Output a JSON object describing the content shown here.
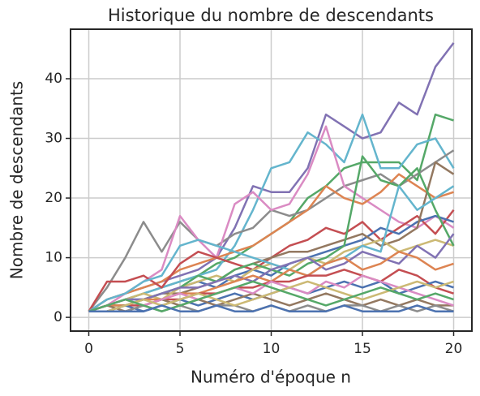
{
  "chart_data": {
    "type": "line",
    "title": "Historique du nombre de descendants",
    "xlabel": "Numéro d'époque n",
    "ylabel": "Nombre de descendants",
    "x": [
      0,
      1,
      2,
      3,
      4,
      5,
      6,
      7,
      8,
      9,
      10,
      11,
      12,
      13,
      14,
      15,
      16,
      17,
      18,
      19,
      20
    ],
    "xlim": [
      -1,
      21
    ],
    "ylim": [
      -2.3,
      48.3
    ],
    "xticks": [
      0,
      5,
      10,
      15,
      20
    ],
    "yticks": [
      0,
      10,
      20,
      30,
      40
    ],
    "grid": true,
    "series": [
      {
        "color": "#8172b3",
        "values": [
          1,
          3,
          4,
          5,
          6,
          7,
          8,
          10,
          15,
          22,
          21,
          21,
          25,
          34,
          32,
          30,
          31,
          36,
          34,
          42,
          46
        ]
      },
      {
        "color": "#55a868",
        "values": [
          1,
          2,
          3,
          4,
          5,
          6,
          7,
          9,
          10,
          12,
          14,
          16,
          20,
          22,
          25,
          26,
          26,
          26,
          23,
          34,
          33
        ]
      },
      {
        "color": "#64b5cd",
        "values": [
          1,
          2,
          3,
          4,
          5,
          6,
          7,
          8,
          12,
          18,
          25,
          26,
          31,
          29,
          26,
          34,
          25,
          25,
          29,
          30,
          25
        ]
      },
      {
        "color": "#8c8c8c",
        "values": [
          1,
          5,
          10,
          16,
          11,
          16,
          13,
          12,
          14,
          15,
          18,
          17,
          18,
          20,
          22,
          23,
          24,
          22,
          24,
          26,
          28
        ]
      },
      {
        "color": "#da8bc3",
        "values": [
          1,
          2,
          4,
          6,
          8,
          17,
          13,
          10,
          19,
          21,
          18,
          19,
          24,
          32,
          22,
          20,
          18,
          16,
          15,
          17,
          15
        ]
      },
      {
        "color": "#dd8452",
        "values": [
          1,
          3,
          4,
          5,
          6,
          8,
          9,
          10,
          11,
          12,
          14,
          16,
          18,
          22,
          20,
          19,
          21,
          24,
          22,
          20,
          21
        ]
      },
      {
        "color": "#c44e52",
        "values": [
          1,
          6,
          6,
          7,
          5,
          9,
          11,
          10,
          9,
          8,
          10,
          12,
          13,
          15,
          14,
          16,
          13,
          15,
          17,
          14,
          18
        ]
      },
      {
        "color": "#4c72b0",
        "values": [
          1,
          2,
          3,
          3,
          4,
          5,
          6,
          5,
          7,
          8,
          7,
          9,
          10,
          11,
          12,
          13,
          15,
          14,
          16,
          17,
          16
        ]
      },
      {
        "color": "#937860",
        "values": [
          1,
          2,
          2,
          3,
          4,
          4,
          5,
          6,
          8,
          9,
          10,
          11,
          11,
          12,
          13,
          14,
          12,
          13,
          15,
          26,
          24
        ]
      },
      {
        "color": "#ccb974",
        "values": [
          1,
          2,
          3,
          4,
          3,
          5,
          6,
          7,
          6,
          8,
          9,
          8,
          10,
          9,
          11,
          12,
          13,
          11,
          12,
          13,
          12
        ]
      },
      {
        "color": "#55a868",
        "values": [
          1,
          2,
          2,
          3,
          4,
          5,
          7,
          6,
          8,
          9,
          8,
          7,
          9,
          10,
          12,
          27,
          23,
          22,
          25,
          18,
          12
        ]
      },
      {
        "color": "#64b5cd",
        "values": [
          1,
          3,
          4,
          6,
          7,
          12,
          13,
          12,
          11,
          10,
          9,
          8,
          7,
          9,
          10,
          12,
          11,
          22,
          18,
          20,
          22
        ]
      },
      {
        "color": "#8172b3",
        "values": [
          1,
          2,
          3,
          3,
          4,
          5,
          5,
          6,
          7,
          6,
          8,
          9,
          10,
          8,
          9,
          11,
          10,
          9,
          12,
          10,
          14
        ]
      },
      {
        "color": "#dd8452",
        "values": [
          1,
          2,
          2,
          3,
          3,
          4,
          4,
          5,
          6,
          7,
          6,
          8,
          7,
          9,
          10,
          8,
          9,
          11,
          10,
          8,
          9
        ]
      },
      {
        "color": "#c44e52",
        "values": [
          1,
          1,
          2,
          2,
          3,
          3,
          4,
          4,
          5,
          5,
          6,
          6,
          7,
          7,
          8,
          7,
          6,
          8,
          7,
          5,
          4
        ]
      },
      {
        "color": "#4c72b0",
        "values": [
          1,
          1,
          2,
          1,
          2,
          3,
          2,
          3,
          4,
          3,
          4,
          5,
          4,
          5,
          6,
          5,
          6,
          4,
          5,
          6,
          5
        ]
      },
      {
        "color": "#937860",
        "values": [
          1,
          2,
          1,
          2,
          3,
          2,
          3,
          2,
          3,
          4,
          3,
          2,
          3,
          4,
          3,
          2,
          3,
          2,
          3,
          2,
          2
        ]
      },
      {
        "color": "#8c8c8c",
        "values": [
          1,
          1,
          1,
          2,
          1,
          2,
          1,
          2,
          2,
          1,
          2,
          1,
          2,
          1,
          2,
          2,
          1,
          2,
          1,
          2,
          1
        ]
      },
      {
        "color": "#da8bc3",
        "values": [
          1,
          2,
          3,
          2,
          3,
          4,
          3,
          4,
          5,
          4,
          6,
          5,
          4,
          6,
          5,
          7,
          6,
          5,
          4,
          3,
          2
        ]
      },
      {
        "color": "#ccb974",
        "values": [
          1,
          1,
          2,
          3,
          2,
          3,
          4,
          3,
          2,
          3,
          4,
          5,
          6,
          5,
          4,
          3,
          4,
          5,
          6,
          5,
          6
        ]
      },
      {
        "color": "#55a868",
        "values": [
          1,
          2,
          3,
          2,
          1,
          2,
          3,
          4,
          5,
          6,
          5,
          4,
          3,
          2,
          3,
          4,
          5,
          4,
          3,
          4,
          3
        ]
      },
      {
        "color": "#4c72b0",
        "values": [
          1,
          1,
          1,
          1,
          2,
          1,
          1,
          2,
          1,
          1,
          2,
          1,
          1,
          1,
          2,
          1,
          1,
          1,
          2,
          1,
          1
        ]
      }
    ]
  }
}
